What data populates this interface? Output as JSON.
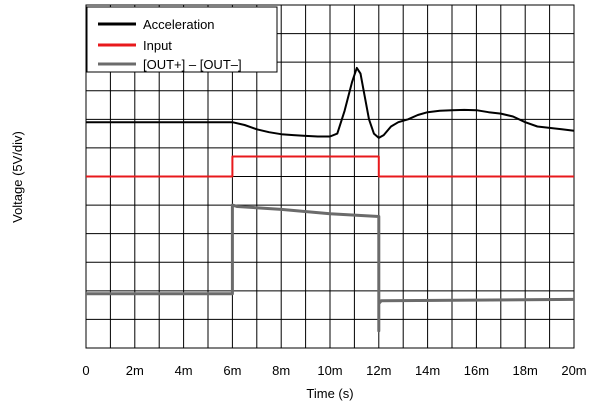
{
  "chart_data": {
    "type": "line",
    "xlabel": "Time (s)",
    "ylabel": "Voltage (5V/div)",
    "x_ticks": [
      "0",
      "2m",
      "4m",
      "6m",
      "8m",
      "10m",
      "12m",
      "14m",
      "16m",
      "18m",
      "20m"
    ],
    "xlim": [
      0,
      20
    ],
    "ylim": [
      0,
      12
    ],
    "grid": true,
    "legend_position": "top-left",
    "series": [
      {
        "name": "Acceleration",
        "color": "#000000",
        "x": [
          0,
          6,
          6.5,
          7,
          7.5,
          8,
          8.5,
          9,
          9.5,
          10,
          10.3,
          10.6,
          10.9,
          11.1,
          11.25,
          11.4,
          11.6,
          11.8,
          12.0,
          12.2,
          12.5,
          12.8,
          13.2,
          13.6,
          14.0,
          14.5,
          15,
          15.5,
          16,
          16.5,
          17,
          17.5,
          18,
          18.5,
          19,
          19.5,
          20
        ],
        "y": [
          7.9,
          7.9,
          7.8,
          7.65,
          7.55,
          7.48,
          7.45,
          7.42,
          7.4,
          7.4,
          7.5,
          8.3,
          9.3,
          9.8,
          9.6,
          8.9,
          8.0,
          7.5,
          7.35,
          7.45,
          7.75,
          7.9,
          8.0,
          8.15,
          8.25,
          8.3,
          8.32,
          8.33,
          8.32,
          8.25,
          8.2,
          8.1,
          7.9,
          7.75,
          7.7,
          7.65,
          7.6
        ]
      },
      {
        "name": "Input",
        "color": "#e8191c",
        "x": [
          0,
          6,
          6,
          12,
          12,
          20
        ],
        "y": [
          6.0,
          6.0,
          6.7,
          6.7,
          6.0,
          6.0
        ]
      },
      {
        "name": "[OUT+] – [OUT–]",
        "color": "#6b6b6b",
        "x": [
          0,
          6,
          6,
          6.2,
          8,
          10,
          12,
          12,
          12,
          12.1,
          20
        ],
        "y": [
          1.9,
          1.9,
          5.0,
          4.95,
          4.85,
          4.7,
          4.6,
          0.6,
          1.55,
          1.65,
          1.7
        ]
      }
    ]
  }
}
